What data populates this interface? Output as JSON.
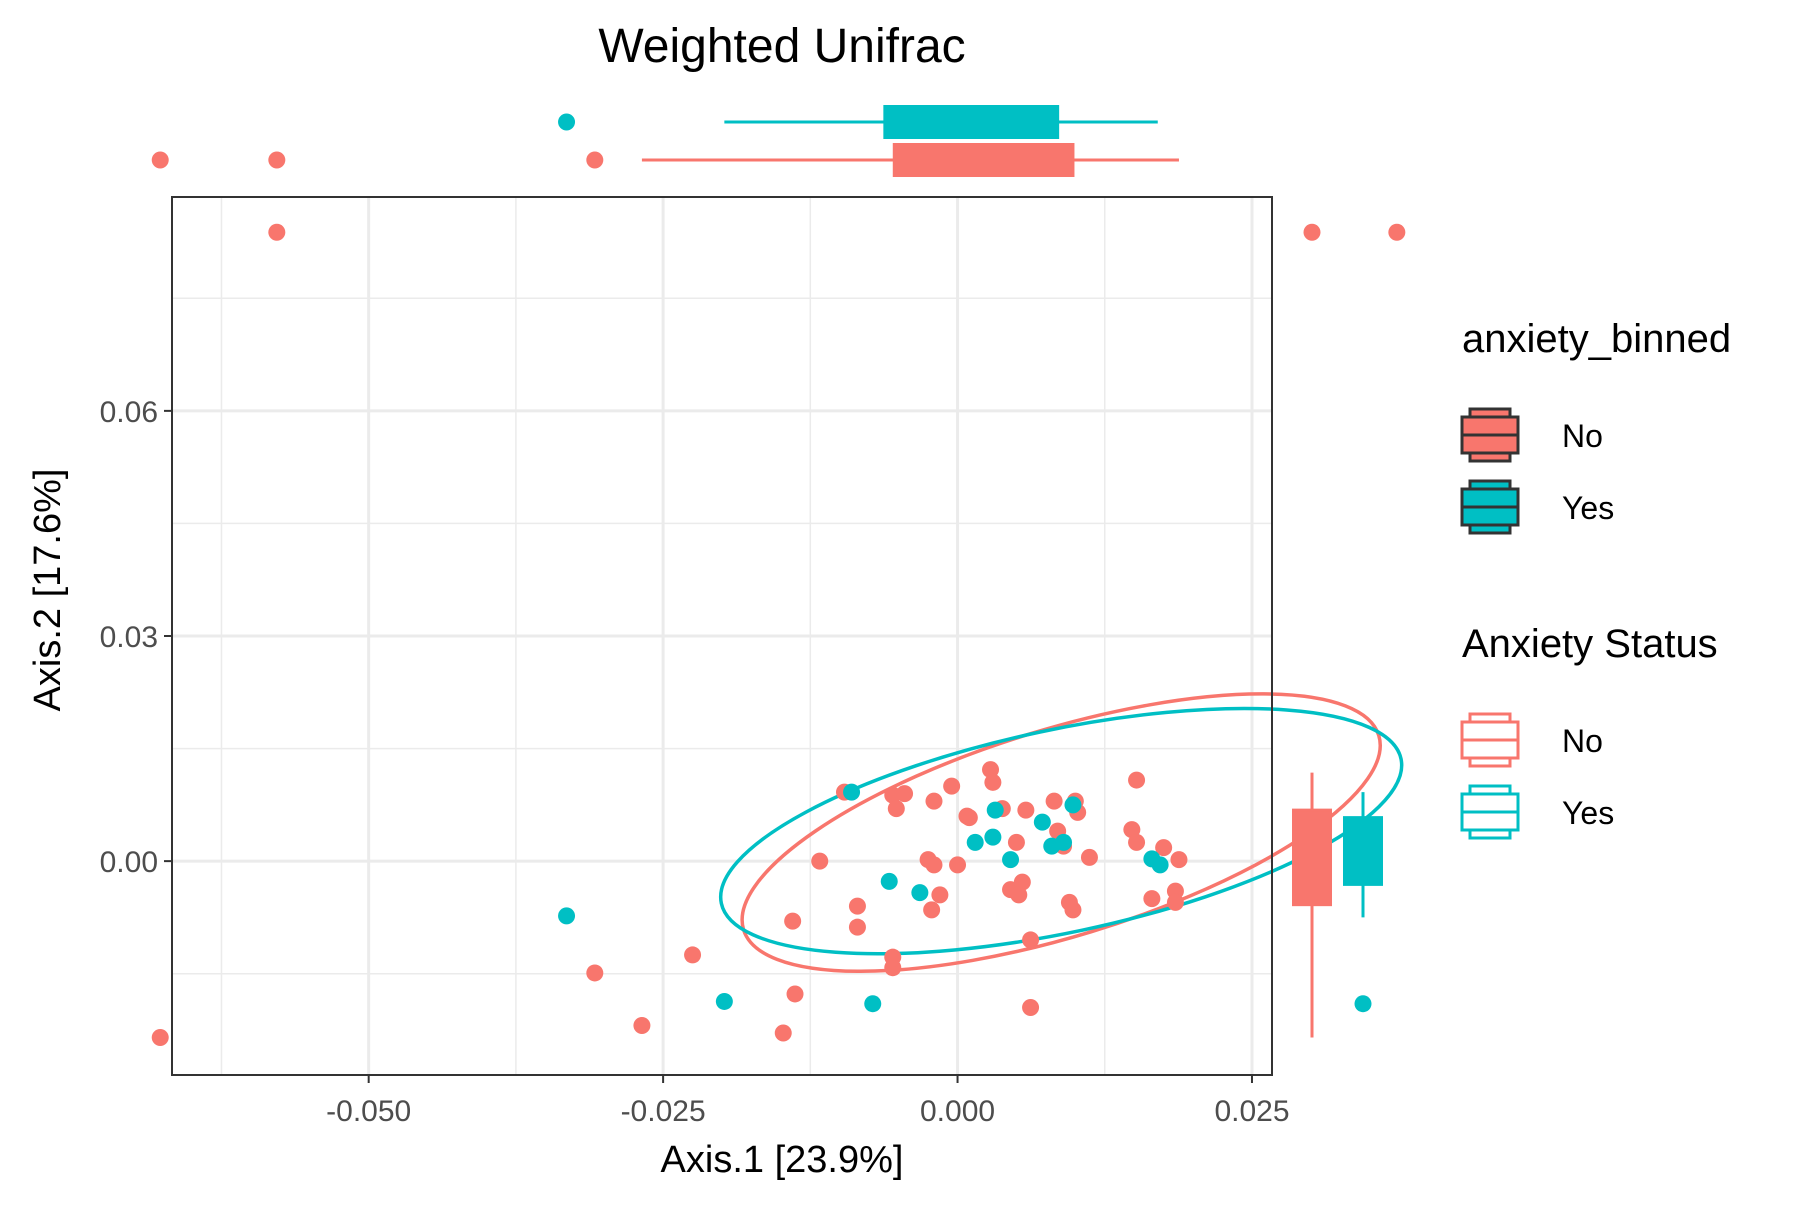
{
  "chart_data": {
    "type": "scatter",
    "title": "Weighted Unifrac",
    "xlabel": "Axis.1   [23.9%]",
    "ylabel": "Axis.2   [17.6%]",
    "xlim": [
      -0.0667,
      0.0267
    ],
    "ylim": [
      -0.0285,
      0.0885
    ],
    "x_ticks": [
      -0.05,
      -0.025,
      0.0,
      0.025
    ],
    "x_tick_labels": [
      "-0.050",
      "-0.025",
      "0.000",
      "0.025"
    ],
    "y_ticks": [
      0.0,
      0.03,
      0.06
    ],
    "y_tick_labels": [
      "0.00",
      "0.03",
      "0.06"
    ],
    "grid": true,
    "legend_placement": "right",
    "colors": {
      "No": "#F8766D",
      "Yes": "#00BFC4"
    },
    "legends": [
      {
        "title": "anxiety_binned",
        "style": "filled",
        "entries": [
          "No",
          "Yes"
        ]
      },
      {
        "title": "Anxiety Status",
        "style": "outline",
        "entries": [
          "No",
          "Yes"
        ]
      }
    ],
    "series": [
      {
        "name": "No",
        "color": "#F8766D",
        "points": [
          [
            -0.0677,
            -0.0235
          ],
          [
            -0.0578,
            0.0838
          ],
          [
            0.0373,
            0.0838
          ],
          [
            -0.0308,
            -0.0149
          ],
          [
            -0.0268,
            -0.0219
          ],
          [
            -0.0225,
            -0.0125
          ],
          [
            -0.0148,
            -0.0229
          ],
          [
            -0.0138,
            -0.0177
          ],
          [
            -0.014,
            -0.008
          ],
          [
            -0.0117,
            0.0
          ],
          [
            -0.0096,
            0.0092
          ],
          [
            -0.0085,
            -0.006
          ],
          [
            -0.0085,
            -0.0088
          ],
          [
            -0.0055,
            -0.0128
          ],
          [
            -0.0055,
            -0.0142
          ],
          [
            -0.0055,
            0.0088
          ],
          [
            -0.0052,
            0.007
          ],
          [
            -0.0045,
            0.009
          ],
          [
            -0.0025,
            0.0002
          ],
          [
            -0.002,
            -0.0005
          ],
          [
            -0.0015,
            -0.0045
          ],
          [
            -0.0022,
            -0.0065
          ],
          [
            -0.002,
            0.008
          ],
          [
            -0.0005,
            0.01
          ],
          [
            0.0,
            -0.0005
          ],
          [
            0.0008,
            0.006
          ],
          [
            0.001,
            0.0058
          ],
          [
            0.0028,
            0.0122
          ],
          [
            0.003,
            0.0105
          ],
          [
            0.0038,
            0.007
          ],
          [
            0.0045,
            -0.0038
          ],
          [
            0.0055,
            -0.0028
          ],
          [
            0.0052,
            -0.0045
          ],
          [
            0.005,
            0.0025
          ],
          [
            0.0058,
            0.0068
          ],
          [
            0.0062,
            -0.0105
          ],
          [
            0.0062,
            -0.0195
          ],
          [
            0.0082,
            0.008
          ],
          [
            0.0085,
            0.004
          ],
          [
            0.009,
            0.002
          ],
          [
            0.0095,
            -0.0055
          ],
          [
            0.0098,
            -0.0065
          ],
          [
            0.01,
            0.008
          ],
          [
            0.0102,
            0.0065
          ],
          [
            0.0112,
            0.0005
          ],
          [
            0.0148,
            0.0042
          ],
          [
            0.0152,
            0.0025
          ],
          [
            0.0152,
            0.0108
          ],
          [
            0.0165,
            -0.005
          ],
          [
            0.0175,
            0.0018
          ],
          [
            0.0185,
            -0.004
          ],
          [
            0.0185,
            -0.0055
          ],
          [
            0.0188,
            0.0002
          ]
        ]
      },
      {
        "name": "Yes",
        "color": "#00BFC4",
        "points": [
          [
            -0.0332,
            -0.0073
          ],
          [
            -0.0198,
            -0.0187
          ],
          [
            -0.009,
            0.0092
          ],
          [
            -0.0072,
            -0.019
          ],
          [
            -0.0058,
            -0.0027
          ],
          [
            -0.0032,
            -0.0042
          ],
          [
            0.0015,
            0.0025
          ],
          [
            0.003,
            0.0032
          ],
          [
            0.0032,
            0.0068
          ],
          [
            0.0045,
            0.0002
          ],
          [
            0.0072,
            0.0052
          ],
          [
            0.008,
            0.002
          ],
          [
            0.009,
            0.0025
          ],
          [
            0.0098,
            0.0075
          ],
          [
            0.0165,
            0.0003
          ],
          [
            0.0172,
            -0.0005
          ]
        ]
      }
    ],
    "ellipses": [
      {
        "name": "No",
        "color": "#F8766D",
        "center": [
          0.0088,
          0.0038
        ],
        "rx": 0.0282,
        "ry": 0.0138,
        "angle_deg": -17
      },
      {
        "name": "Yes",
        "color": "#00BFC4",
        "center": [
          0.0088,
          0.004
        ],
        "rx": 0.0295,
        "ry": 0.0135,
        "angle_deg": -12
      }
    ],
    "marginal_boxplots": {
      "x": [
        {
          "name": "Yes",
          "whiskers": [
            -0.0198,
            0.017
          ],
          "box": [
            -0.0063,
            0.0085
          ],
          "median": 0.0085,
          "outliers": [
            -0.0332
          ]
        },
        {
          "name": "No",
          "whiskers": [
            -0.0268,
            0.0188
          ],
          "box": [
            -0.0055,
            0.0098
          ],
          "median": 0.0098,
          "outliers": [
            -0.0677,
            -0.0578,
            -0.0308
          ]
        }
      ],
      "y": [
        {
          "name": "No",
          "whiskers": [
            -0.0235,
            0.0118
          ],
          "box": [
            -0.006,
            0.0068
          ],
          "median": 0.0068,
          "outliers": [
            0.0838
          ]
        },
        {
          "name": "Yes",
          "whiskers": [
            -0.0075,
            0.0092
          ],
          "box": [
            -0.0033,
            0.0058
          ],
          "median": 0.0058,
          "outliers": [
            -0.019
          ]
        }
      ]
    }
  }
}
